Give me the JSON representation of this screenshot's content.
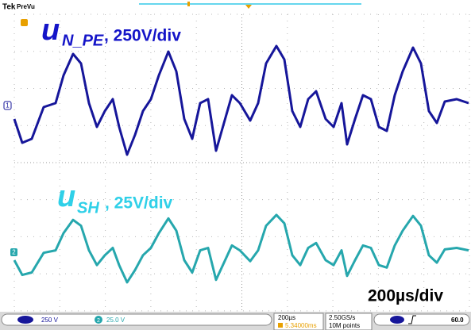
{
  "header": {
    "brand": "Tek",
    "mode": "PreVu"
  },
  "traces": [
    {
      "symbol": "u",
      "subscript": "N_PE",
      "scale": ", 250V/div",
      "marker": "1"
    },
    {
      "symbol": "u",
      "subscript": "SH",
      "scale": ", 25V/div",
      "marker": "2"
    }
  ],
  "timebase": "200µs/div",
  "status_bar": {
    "ch1_scale": "250 V",
    "ch2_label": "2",
    "ch2_scale": "25.0 V",
    "horizontal": "200µs",
    "position": "5.34000ms",
    "sample_rate": "2.50GS/s",
    "record_length": "10M points",
    "trigger_level": "60.0"
  }
}
